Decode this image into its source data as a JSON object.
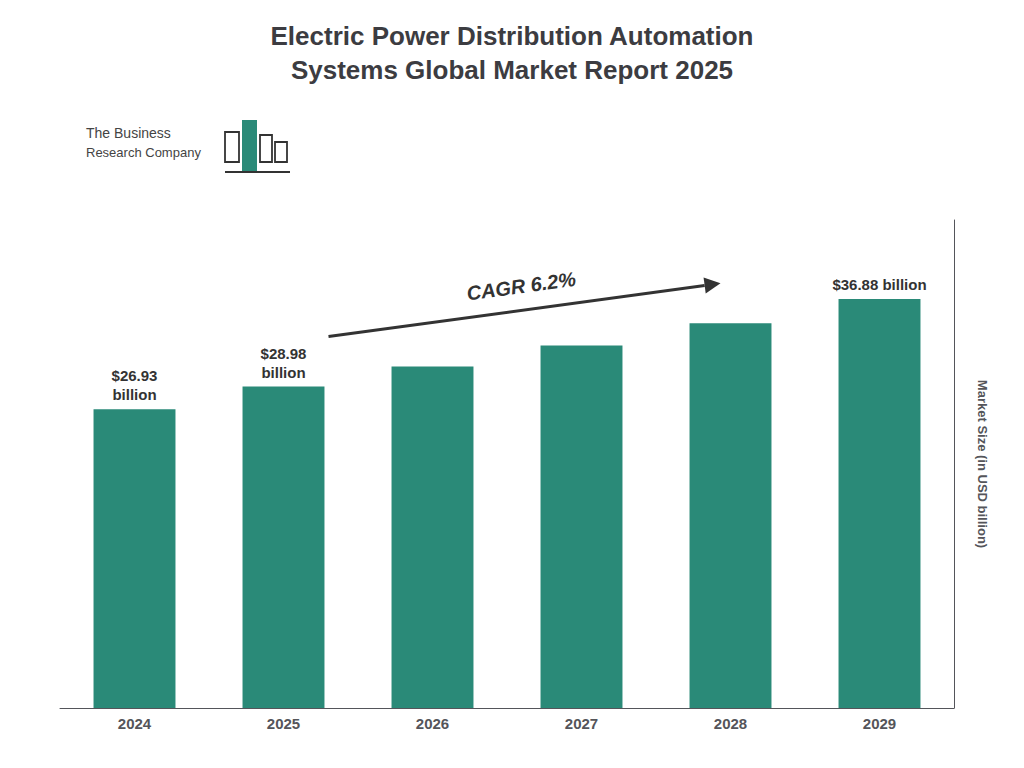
{
  "chart_data": {
    "type": "bar",
    "title": "Electric Power Distribution Automation\nSystems Global Market Report 2025",
    "categories": [
      "2024",
      "2025",
      "2026",
      "2027",
      "2028",
      "2029"
    ],
    "values": [
      26.93,
      28.98,
      30.78,
      32.68,
      34.68,
      36.88
    ],
    "value_labels": [
      "$26.93\nbillion",
      "$28.98\nbillion",
      null,
      null,
      null,
      "$36.88 billion"
    ],
    "data_labels": true,
    "color": "#2a8a78",
    "y_label": "Market Size (in USD billion)",
    "ylim": [
      0,
      44
    ],
    "grid": false,
    "tick_labels": "x",
    "annotations": [
      "CAGR 6.2%",
      "The Business",
      "Research Company"
    ]
  }
}
